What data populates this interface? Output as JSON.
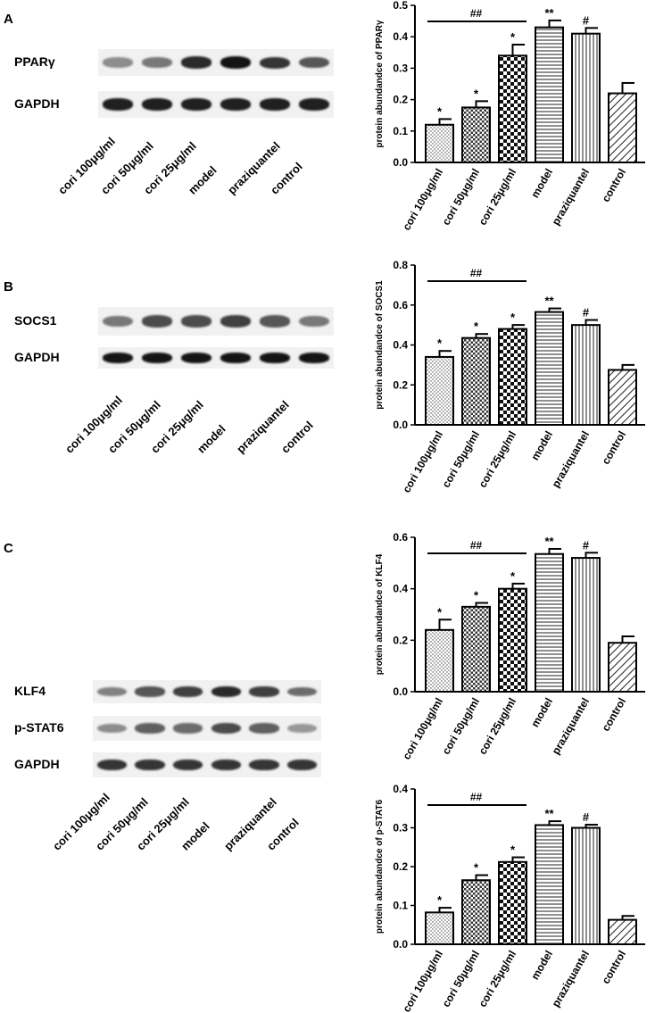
{
  "panels": [
    {
      "letter": "A"
    },
    {
      "letter": "B"
    },
    {
      "letter": "C"
    }
  ],
  "lanes": [
    "cori 100μg/ml",
    "cori 50μg/ml",
    "cori 25μg/ml",
    "model",
    "praziquantel",
    "control"
  ],
  "blots": {
    "A": [
      {
        "label": "PPARγ",
        "intensities": [
          0.45,
          0.55,
          0.9,
          1.0,
          0.85,
          0.7
        ]
      },
      {
        "label": "GAPDH",
        "intensities": [
          0.95,
          0.95,
          0.95,
          0.95,
          0.95,
          0.95
        ]
      }
    ],
    "B": [
      {
        "label": "SOCS1",
        "intensities": [
          0.55,
          0.75,
          0.75,
          0.8,
          0.7,
          0.55
        ]
      },
      {
        "label": "GAPDH",
        "intensities": [
          1.0,
          1.0,
          1.0,
          1.0,
          1.0,
          1.0
        ]
      }
    ],
    "C": [
      {
        "label": "KLF4",
        "intensities": [
          0.5,
          0.7,
          0.8,
          0.9,
          0.8,
          0.6
        ]
      },
      {
        "label": "p-STAT6",
        "intensities": [
          0.45,
          0.65,
          0.6,
          0.75,
          0.65,
          0.4
        ]
      },
      {
        "label": "GAPDH",
        "intensities": [
          0.85,
          0.85,
          0.85,
          0.85,
          0.85,
          0.85
        ]
      }
    ]
  },
  "chart_data": [
    {
      "type": "bar",
      "categories": [
        "cori 100μg/ml",
        "cori 50μg/ml",
        "cori 25μg/ml",
        "model",
        "praziquantel",
        "control"
      ],
      "values": [
        0.12,
        0.175,
        0.34,
        0.43,
        0.41,
        0.22
      ],
      "errors": [
        0.018,
        0.02,
        0.035,
        0.022,
        0.018,
        0.033
      ],
      "markers": [
        "*",
        "*",
        "*",
        "**",
        "#",
        ""
      ],
      "bracket_label": "##",
      "ylabel": "protein abundandce of PPARγ",
      "yticks": [
        "0.0",
        "0.1",
        "0.2",
        "0.3",
        "0.4",
        "0.5"
      ],
      "ylim": [
        0,
        0.5
      ]
    },
    {
      "type": "bar",
      "categories": [
        "cori 100μg/ml",
        "cori 50μg/ml",
        "cori 25μg/ml",
        "model",
        "praziquantel",
        "control"
      ],
      "values": [
        0.34,
        0.435,
        0.48,
        0.565,
        0.5,
        0.275
      ],
      "errors": [
        0.03,
        0.02,
        0.02,
        0.018,
        0.025,
        0.025
      ],
      "markers": [
        "*",
        "*",
        "*",
        "**",
        "#",
        ""
      ],
      "bracket_label": "##",
      "ylabel": "protein abundandce of SOCS1",
      "yticks": [
        "0.0",
        "0.2",
        "0.4",
        "0.6",
        "0.8"
      ],
      "ylim": [
        0,
        0.8
      ]
    },
    {
      "type": "bar",
      "categories": [
        "cori 100μg/ml",
        "cori 50μg/ml",
        "cori 25μg/ml",
        "model",
        "praziquantel",
        "control"
      ],
      "values": [
        0.24,
        0.33,
        0.4,
        0.535,
        0.52,
        0.19
      ],
      "errors": [
        0.04,
        0.015,
        0.02,
        0.02,
        0.02,
        0.025
      ],
      "markers": [
        "*",
        "*",
        "*",
        "**",
        "#",
        ""
      ],
      "bracket_label": "##",
      "ylabel": "protein abundandce of KLF4",
      "yticks": [
        "0.0",
        "0.2",
        "0.4",
        "0.6"
      ],
      "ylim": [
        0,
        0.6
      ]
    },
    {
      "type": "bar",
      "categories": [
        "cori 100μg/ml",
        "cori 50μg/ml",
        "cori 25μg/ml",
        "model",
        "praziquantel",
        "control"
      ],
      "values": [
        0.082,
        0.165,
        0.212,
        0.307,
        0.3,
        0.063
      ],
      "errors": [
        0.012,
        0.013,
        0.012,
        0.01,
        0.008,
        0.01
      ],
      "markers": [
        "*",
        "*",
        "*",
        "**",
        "#",
        ""
      ],
      "bracket_label": "##",
      "ylabel": "protein abundandce of p-STAT6",
      "yticks": [
        "0.0",
        "0.1",
        "0.2",
        "0.3",
        "0.4"
      ],
      "ylim": [
        0,
        0.4
      ]
    }
  ]
}
